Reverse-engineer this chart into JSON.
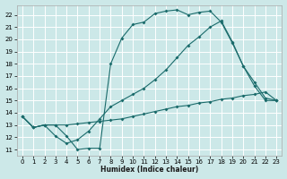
{
  "xlabel": "Humidex (Indice chaleur)",
  "bg_color": "#cce8e8",
  "line_color": "#1a6b6b",
  "grid_color": "#ffffff",
  "xlim": [
    -0.5,
    23.5
  ],
  "ylim": [
    10.5,
    22.8
  ],
  "yticks": [
    11,
    12,
    13,
    14,
    15,
    16,
    17,
    18,
    19,
    20,
    21,
    22
  ],
  "xticks": [
    0,
    1,
    2,
    3,
    4,
    5,
    6,
    7,
    8,
    9,
    10,
    11,
    12,
    13,
    14,
    15,
    16,
    17,
    18,
    19,
    20,
    21,
    22,
    23
  ],
  "line1_x": [
    0,
    1,
    2,
    3,
    4,
    5,
    6,
    7,
    8,
    9,
    10,
    11,
    12,
    13,
    14,
    15,
    16,
    17,
    18,
    19,
    20,
    21,
    22,
    23
  ],
  "line1_y": [
    13.7,
    12.8,
    13.0,
    13.0,
    12.1,
    11.0,
    11.1,
    11.1,
    18.0,
    20.1,
    21.2,
    21.4,
    22.1,
    22.3,
    22.4,
    22.0,
    22.2,
    22.3,
    21.4,
    19.7,
    17.8,
    16.2,
    15.0,
    15.0
  ],
  "line2_x": [
    0,
    1,
    2,
    3,
    4,
    5,
    6,
    7,
    8,
    9,
    10,
    11,
    12,
    13,
    14,
    15,
    16,
    17,
    18,
    19,
    20,
    21,
    22,
    23
  ],
  "line2_y": [
    13.7,
    12.8,
    13.0,
    12.1,
    11.5,
    11.8,
    12.5,
    13.5,
    14.5,
    15.0,
    15.5,
    16.0,
    16.7,
    17.5,
    18.5,
    19.5,
    20.2,
    21.0,
    21.5,
    19.8,
    17.8,
    16.5,
    15.2,
    15.0
  ],
  "line3_x": [
    0,
    1,
    2,
    3,
    4,
    5,
    6,
    7,
    8,
    9,
    10,
    11,
    12,
    13,
    14,
    15,
    16,
    17,
    18,
    19,
    20,
    21,
    22,
    23
  ],
  "line3_y": [
    13.7,
    12.8,
    13.0,
    13.0,
    13.0,
    13.1,
    13.2,
    13.3,
    13.4,
    13.5,
    13.7,
    13.9,
    14.1,
    14.3,
    14.5,
    14.6,
    14.8,
    14.9,
    15.1,
    15.2,
    15.4,
    15.5,
    15.7,
    15.0
  ]
}
